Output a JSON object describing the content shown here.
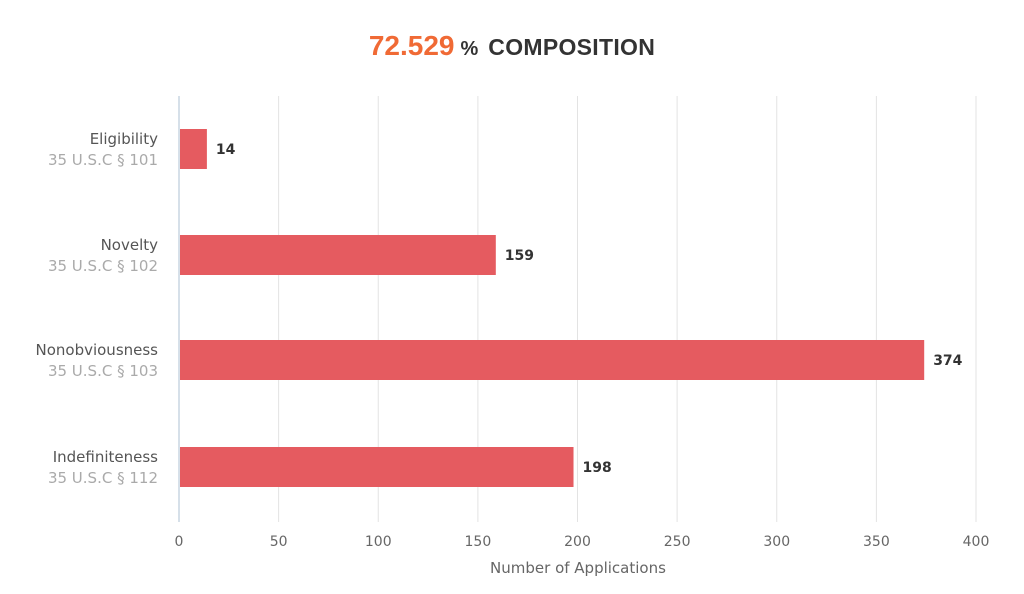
{
  "header": {
    "percent": "72.529",
    "percent_symbol": "%",
    "label": "COMPOSITION"
  },
  "colors": {
    "accent": "#f06a35",
    "bar": "#e55b60",
    "grid": "#e3e3e3",
    "axis": "#c8d6e2"
  },
  "chart_data": {
    "type": "bar",
    "orientation": "horizontal",
    "categories": [
      "Eligibility",
      "Novelty",
      "Nonobviousness",
      "Indefiniteness"
    ],
    "subtitles": [
      "35 U.S.C § 101",
      "35 U.S.C § 102",
      "35 U.S.C § 103",
      "35 U.S.C § 112"
    ],
    "values": [
      14,
      159,
      374,
      198
    ],
    "data_labels": [
      "14",
      "159",
      "374",
      "198"
    ],
    "xlabel": "Number of Applications",
    "xlim": [
      0,
      400
    ],
    "xticks": [
      "0",
      "50",
      "100",
      "150",
      "200",
      "250",
      "300",
      "350",
      "400"
    ],
    "grid": true,
    "legend": "none"
  }
}
